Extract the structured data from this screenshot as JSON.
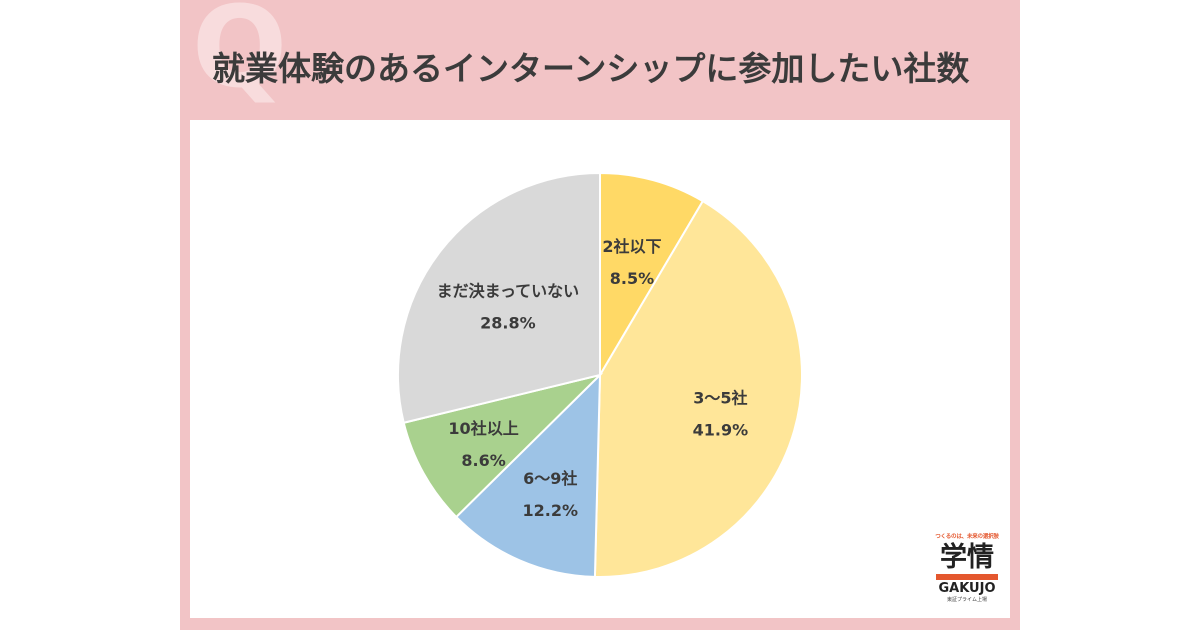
{
  "header": {
    "q_mark": "Q",
    "title": "就業体験のあるインターンシップに参加したい社数"
  },
  "chart_data": {
    "type": "pie",
    "title": "就業体験のあるインターンシップに参加したい社数",
    "labels": [
      "2社以下",
      "3～5社",
      "6～9社",
      "10社以上",
      "まだ決まっていない"
    ],
    "values": [
      8.5,
      41.9,
      12.2,
      8.6,
      28.8
    ],
    "value_labels": [
      "8.5%",
      "41.9%",
      "12.2%",
      "8.6%",
      "28.8%"
    ],
    "colors": [
      "#ffd966",
      "#ffe699",
      "#9dc3e6",
      "#a9d18e",
      "#d9d9d9"
    ],
    "start": "12 o'clock",
    "direction": "clockwise",
    "legend": "none"
  },
  "logo": {
    "tagline": "つくるのは、未来の選択肢",
    "name_jp": "学情",
    "name_en": "GAKUJO",
    "sub": "東証プライム上場"
  }
}
